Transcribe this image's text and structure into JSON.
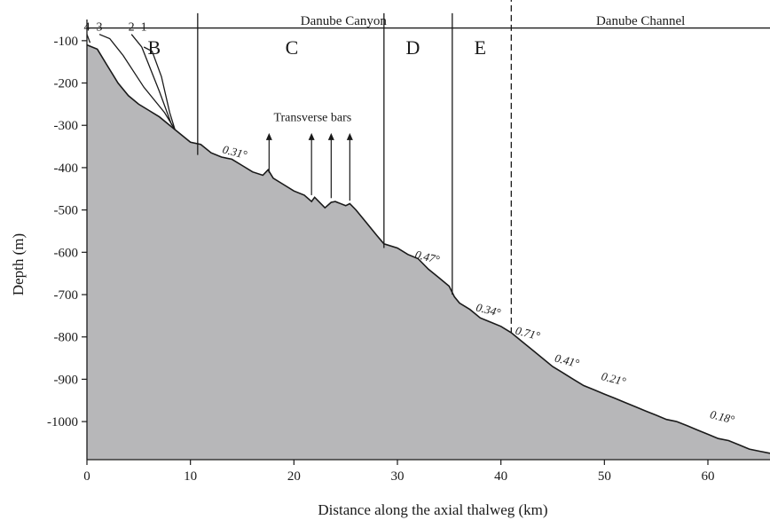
{
  "chart_data": {
    "type": "area",
    "xlabel": "Distance along the axial thalweg (km)",
    "ylabel": "Depth (m)",
    "xlim": [
      0,
      66
    ],
    "ylim": [
      -1090,
      -50
    ],
    "xticks": [
      0,
      10,
      20,
      30,
      40,
      50,
      60
    ],
    "yticks": [
      -100,
      -200,
      -300,
      -400,
      -500,
      -600,
      -700,
      -800,
      -900,
      -1000
    ],
    "grid": false,
    "fill_color": "#b7b7b9",
    "line_color": "#1a1a1a",
    "profile": {
      "x": [
        0,
        1,
        2,
        3,
        4,
        5,
        6,
        7,
        8,
        9,
        10,
        11,
        12,
        13,
        14,
        15,
        16,
        17,
        17.5,
        18,
        19,
        20,
        21,
        21.7,
        22,
        23,
        23.6,
        24,
        25,
        25.4,
        26,
        27,
        28,
        28.7,
        30,
        31,
        32,
        33,
        34,
        35,
        35.5,
        36,
        37,
        38,
        39,
        40,
        41,
        42,
        43,
        44,
        45,
        46,
        47,
        48,
        49,
        50,
        51,
        52,
        53,
        54,
        55,
        56,
        57,
        58,
        59,
        60,
        61,
        62,
        63,
        64,
        65,
        66
      ],
      "y": [
        -110,
        -120,
        -160,
        -200,
        -230,
        -250,
        -265,
        -280,
        -300,
        -320,
        -340,
        -345,
        -365,
        -375,
        -380,
        -395,
        -410,
        -418,
        -405,
        -425,
        -440,
        -455,
        -465,
        -480,
        -470,
        -495,
        -482,
        -480,
        -490,
        -485,
        -500,
        -530,
        -560,
        -580,
        -590,
        -605,
        -615,
        -640,
        -660,
        -680,
        -705,
        -720,
        -735,
        -755,
        -765,
        -775,
        -790,
        -810,
        -830,
        -850,
        -870,
        -885,
        -900,
        -915,
        -925,
        -935,
        -945,
        -955,
        -965,
        -975,
        -985,
        -995,
        -1000,
        -1010,
        -1020,
        -1030,
        -1040,
        -1045,
        -1055,
        -1065,
        -1070,
        -1075
      ]
    },
    "profile_lines": [
      {
        "label": "4",
        "top": -85,
        "x": [
          0,
          0.3
        ],
        "y": [
          -85,
          -105
        ]
      },
      {
        "label": "3",
        "top": -85,
        "x": [
          1.2,
          2.2,
          3.5,
          5.5,
          7.5,
          8.5
        ],
        "y": [
          -85,
          -95,
          -135,
          -210,
          -270,
          -310
        ]
      },
      {
        "label": "2",
        "top": -85,
        "x": [
          4.3,
          5.3,
          7.0,
          8.2
        ],
        "y": [
          -85,
          -115,
          -220,
          -300
        ]
      },
      {
        "label": "1",
        "top": -85,
        "x": [
          5.5,
          6.3,
          7.2,
          8.0,
          8.5
        ],
        "y": [
          -115,
          -125,
          -185,
          -270,
          -310
        ]
      }
    ],
    "reference_depth": -70,
    "zone_boundaries": [
      {
        "x": 10.7,
        "y_top": -35,
        "y_bottom": -370,
        "dashed": false
      },
      {
        "x": 28.7,
        "y_top": -35,
        "y_bottom": -590,
        "dashed": false
      },
      {
        "x": 35.3,
        "y_top": -35,
        "y_bottom": -700,
        "dashed": false
      },
      {
        "x": 41.0,
        "y_top": 30,
        "y_bottom": -790,
        "dashed": true
      }
    ],
    "zones": [
      {
        "label": "B",
        "x": 6.5
      },
      {
        "label": "C",
        "x": 19.8
      },
      {
        "label": "D",
        "x": 31.5
      },
      {
        "label": "E",
        "x": 38.0
      }
    ],
    "regions": [
      {
        "label": "Danube Canyon",
        "x": 24.8
      },
      {
        "label": "Danube Channel",
        "x": 53.5
      }
    ],
    "transverse_bars": {
      "label": "Transverse bars",
      "label_x": 21.8,
      "label_y": -290,
      "arrows": [
        {
          "x": 17.6,
          "y_from": -412,
          "y_to": -318
        },
        {
          "x": 21.7,
          "y_from": -465,
          "y_to": -318
        },
        {
          "x": 23.6,
          "y_from": -472,
          "y_to": -318
        },
        {
          "x": 25.4,
          "y_from": -478,
          "y_to": -318
        }
      ]
    },
    "slope_annotations": [
      {
        "label": "0.31°",
        "x": 14.2,
        "y": -372
      },
      {
        "label": "0.47°",
        "x": 32.8,
        "y": -620
      },
      {
        "label": "0.34°",
        "x": 38.7,
        "y": -745
      },
      {
        "label": "0.71°",
        "x": 42.5,
        "y": -800
      },
      {
        "label": "0.41°",
        "x": 46.3,
        "y": -865
      },
      {
        "label": "0.21°",
        "x": 50.8,
        "y": -908
      },
      {
        "label": "0.18°",
        "x": 61.3,
        "y": -998
      }
    ]
  }
}
